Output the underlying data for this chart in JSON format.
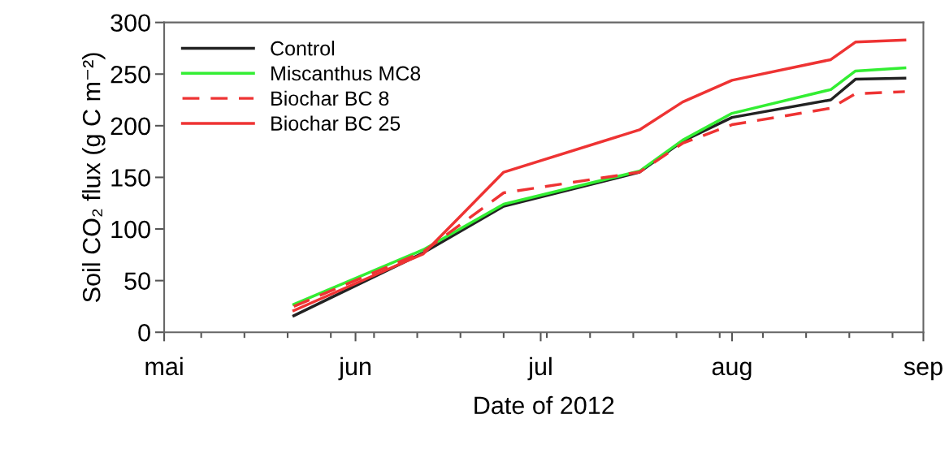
{
  "chart_data": {
    "type": "line",
    "xlabel": "Date of 2012",
    "ylabel": "Soil CO₂ flux (g C m⁻²)",
    "x": [
      "2012-05-22",
      "2012-06-12",
      "2012-06-25",
      "2012-07-17",
      "2012-07-24",
      "2012-08-01",
      "2012-08-17",
      "2012-08-21",
      "2012-08-29"
    ],
    "series": [
      {
        "name": "Control",
        "color": "#222222",
        "line_style": "solid",
        "values": [
          16,
          77,
          122,
          155,
          185,
          208,
          225,
          245,
          246
        ]
      },
      {
        "name": "Miscanthus MC8",
        "color": "#33ee33",
        "line_style": "solid",
        "values": [
          27,
          80,
          124,
          156,
          186,
          212,
          235,
          253,
          256
        ]
      },
      {
        "name": "Biochar BC 8",
        "color": "#ee3333",
        "line_style": "dashed",
        "values": [
          25,
          78,
          135,
          155,
          183,
          201,
          217,
          231,
          233
        ]
      },
      {
        "name": "Biochar BC 25",
        "color": "#ee3333",
        "line_style": "solid",
        "values": [
          21,
          76,
          155,
          196,
          223,
          244,
          264,
          281,
          283
        ]
      }
    ],
    "xlim": [
      "2012-05-01",
      "2012-09-01"
    ],
    "xticks": [
      {
        "value": "2012-05-01",
        "label": "mai"
      },
      {
        "value": "2012-06-01",
        "label": "jun"
      },
      {
        "value": "2012-07-01",
        "label": "jul"
      },
      {
        "value": "2012-08-01",
        "label": "aug"
      },
      {
        "value": "2012-09-01",
        "label": "sep"
      },
      {
        "value": "2012-05-07",
        "label": null
      },
      {
        "value": "2012-05-14",
        "label": null
      },
      {
        "value": "2012-05-21",
        "label": null
      },
      {
        "value": "2012-05-28",
        "label": null
      },
      {
        "value": "2012-06-04",
        "label": null
      },
      {
        "value": "2012-06-11",
        "label": null
      },
      {
        "value": "2012-06-18",
        "label": null
      },
      {
        "value": "2012-06-25",
        "label": null
      },
      {
        "value": "2012-07-02",
        "label": null
      },
      {
        "value": "2012-07-09",
        "label": null
      },
      {
        "value": "2012-07-16",
        "label": null
      },
      {
        "value": "2012-07-23",
        "label": null
      },
      {
        "value": "2012-07-30",
        "label": null
      },
      {
        "value": "2012-08-06",
        "label": null
      },
      {
        "value": "2012-08-13",
        "label": null
      },
      {
        "value": "2012-08-20",
        "label": null
      },
      {
        "value": "2012-08-27",
        "label": null
      }
    ],
    "ylim": [
      0,
      300
    ],
    "yticks": [
      0,
      50,
      100,
      150,
      200,
      250,
      300
    ],
    "legend": "top left",
    "grid": false
  }
}
